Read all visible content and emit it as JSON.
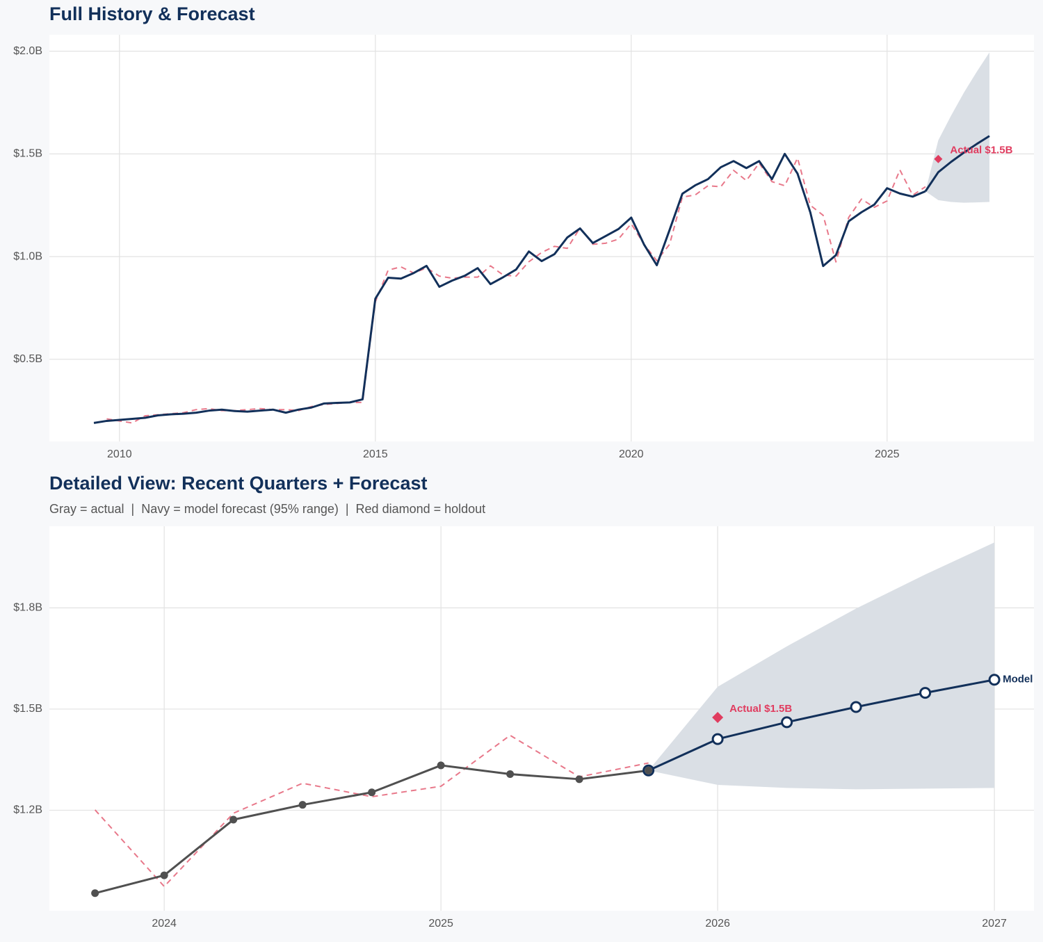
{
  "chart_data": [
    {
      "type": "line",
      "title": "Full History & Forecast",
      "xlim": [
        2008.63,
        2027.87
      ],
      "ylim": [
        0.1,
        2.08
      ],
      "xticks": [
        2010,
        2015,
        2020,
        2025
      ],
      "yticks": [
        {
          "value": 0.5,
          "label": "$0.5B"
        },
        {
          "value": 1.0,
          "label": "$1.0B"
        },
        {
          "value": 1.5,
          "label": "$1.5B"
        },
        {
          "value": 2.0,
          "label": "$2.0B"
        }
      ],
      "grid": true,
      "band": {
        "color": "#dadfe5",
        "x": [
          2025.75,
          2026,
          2026.25,
          2026.5,
          2026.75,
          2027
        ],
        "lower": [
          1.318,
          1.275,
          1.266,
          1.262,
          1.264,
          1.266
        ],
        "upper": [
          1.318,
          1.566,
          1.686,
          1.798,
          1.899,
          1.994
        ]
      },
      "series": [
        {
          "color": "#e8788a",
          "dash": true,
          "markers": "none",
          "x": [
            2009.75,
            2010,
            2010.25,
            2010.5,
            2010.75,
            2011,
            2011.25,
            2011.5,
            2011.75,
            2012,
            2012.25,
            2012.5,
            2012.75,
            2013,
            2013.25,
            2013.5,
            2013.75,
            2014,
            2014.25,
            2014.5,
            2014.75,
            2015,
            2015.25,
            2015.5,
            2015.75,
            2016,
            2016.25,
            2016.5,
            2016.75,
            2017,
            2017.25,
            2017.5,
            2017.75,
            2018,
            2018.25,
            2018.5,
            2018.75,
            2019,
            2019.25,
            2019.5,
            2019.75,
            2020,
            2020.25,
            2020.5,
            2020.75,
            2021,
            2021.25,
            2021.5,
            2021.75,
            2022,
            2022.25,
            2022.5,
            2022.75,
            2023,
            2023.25,
            2023.5,
            2023.75,
            2024,
            2024.25,
            2024.5,
            2024.75,
            2025,
            2025.25,
            2025.5,
            2025.75
          ],
          "values": [
            0.21,
            0.2,
            0.19,
            0.225,
            0.23,
            0.235,
            0.24,
            0.255,
            0.26,
            0.25,
            0.25,
            0.255,
            0.26,
            0.255,
            0.255,
            0.25,
            0.27,
            0.28,
            0.285,
            0.29,
            0.29,
            0.78,
            0.934,
            0.95,
            0.92,
            0.945,
            0.905,
            0.895,
            0.9,
            0.9,
            0.955,
            0.91,
            0.905,
            0.975,
            1.02,
            1.05,
            1.04,
            1.14,
            1.06,
            1.065,
            1.085,
            1.16,
            1.06,
            0.98,
            1.06,
            1.29,
            1.3,
            1.345,
            1.34,
            1.42,
            1.37,
            1.455,
            1.365,
            1.345,
            1.48,
            1.25,
            1.201,
            0.974,
            1.191,
            1.28,
            1.24,
            1.271,
            1.422,
            1.299,
            1.34
          ]
        },
        {
          "color": "#12305a",
          "dash": false,
          "markers": "none",
          "x": [
            2009.5,
            2009.75,
            2010,
            2010.25,
            2010.5,
            2010.75,
            2011,
            2011.25,
            2011.5,
            2011.75,
            2012,
            2012.25,
            2012.5,
            2012.75,
            2013,
            2013.25,
            2013.5,
            2013.75,
            2014,
            2014.25,
            2014.5,
            2014.75,
            2015,
            2015.25,
            2015.5,
            2015.75,
            2016,
            2016.25,
            2016.5,
            2016.75,
            2017,
            2017.25,
            2017.5,
            2017.75,
            2018,
            2018.25,
            2018.5,
            2018.75,
            2019,
            2019.25,
            2019.5,
            2019.75,
            2020,
            2020.25,
            2020.5,
            2020.75,
            2021,
            2021.25,
            2021.5,
            2021.75,
            2022,
            2022.25,
            2022.5,
            2022.75,
            2023,
            2023.25,
            2023.5,
            2023.75,
            2024,
            2024.25,
            2024.5,
            2024.75,
            2025,
            2025.25,
            2025.5,
            2025.75
          ],
          "values": [
            0.19,
            0.2,
            0.205,
            0.21,
            0.215,
            0.227,
            0.232,
            0.235,
            0.24,
            0.25,
            0.255,
            0.248,
            0.245,
            0.25,
            0.255,
            0.24,
            0.255,
            0.265,
            0.285,
            0.288,
            0.29,
            0.305,
            0.795,
            0.897,
            0.893,
            0.92,
            0.955,
            0.853,
            0.883,
            0.907,
            0.944,
            0.866,
            0.9,
            0.937,
            1.025,
            0.978,
            1.012,
            1.093,
            1.137,
            1.066,
            1.1,
            1.134,
            1.19,
            1.059,
            0.958,
            1.13,
            1.306,
            1.347,
            1.377,
            1.435,
            1.465,
            1.431,
            1.465,
            1.377,
            1.5,
            1.404,
            1.215,
            0.954,
            1.007,
            1.172,
            1.216,
            1.253,
            1.333,
            1.307,
            1.292,
            1.318
          ]
        },
        {
          "color": "#12305a",
          "dash": false,
          "markers": "none",
          "x": [
            2025.75,
            2026,
            2026.25,
            2026.5,
            2026.75,
            2027
          ],
          "values": [
            1.318,
            1.411,
            1.461,
            1.506,
            1.548,
            1.587
          ]
        }
      ],
      "holdout": {
        "x": 2026,
        "value": 1.475,
        "label": "Actual $1.5B",
        "color": "#e03c5f"
      }
    },
    {
      "type": "line",
      "title": "Detailed View: Recent Quarters + Forecast",
      "subtitle": "Gray = actual  |  Navy = model forecast (95% range)  |  Red diamond = holdout",
      "xlim": [
        2023.585,
        2027.143
      ],
      "ylim": [
        0.902,
        2.042
      ],
      "xticks": [
        2024,
        2025,
        2026,
        2027
      ],
      "yticks": [
        {
          "value": 1.2,
          "label": "$1.2B"
        },
        {
          "value": 1.5,
          "label": "$1.5B"
        },
        {
          "value": 1.8,
          "label": "$1.8B"
        }
      ],
      "grid": true,
      "band": {
        "color": "#dadfe5",
        "x": [
          2025.75,
          2026,
          2026.25,
          2026.5,
          2026.75,
          2027
        ],
        "lower": [
          1.318,
          1.275,
          1.266,
          1.262,
          1.264,
          1.266
        ],
        "upper": [
          1.318,
          1.566,
          1.686,
          1.798,
          1.899,
          1.994
        ]
      },
      "series": [
        {
          "color": "#e8788a",
          "dash": true,
          "markers": "none",
          "x": [
            2023.75,
            2024,
            2024.25,
            2024.5,
            2024.75,
            2025,
            2025.25,
            2025.5,
            2025.75
          ],
          "values": [
            1.201,
            0.974,
            1.191,
            1.28,
            1.24,
            1.271,
            1.422,
            1.299,
            1.34
          ]
        },
        {
          "name": "Model",
          "color": "#12305a",
          "dash": false,
          "markers": "hollow",
          "x": [
            2025.75,
            2026,
            2026.25,
            2026.5,
            2026.75,
            2027
          ],
          "values": [
            1.318,
            1.411,
            1.461,
            1.506,
            1.548,
            1.587
          ]
        },
        {
          "color": "#505050",
          "dash": false,
          "markers": "filled",
          "x": [
            2023.75,
            2024,
            2024.25,
            2024.5,
            2024.75,
            2025,
            2025.25,
            2025.5,
            2025.75
          ],
          "values": [
            0.954,
            1.007,
            1.172,
            1.216,
            1.253,
            1.333,
            1.307,
            1.292,
            1.318
          ]
        }
      ],
      "holdout": {
        "x": 2026,
        "value": 1.475,
        "label": "Actual $1.5B",
        "color": "#e03c5f"
      }
    }
  ]
}
